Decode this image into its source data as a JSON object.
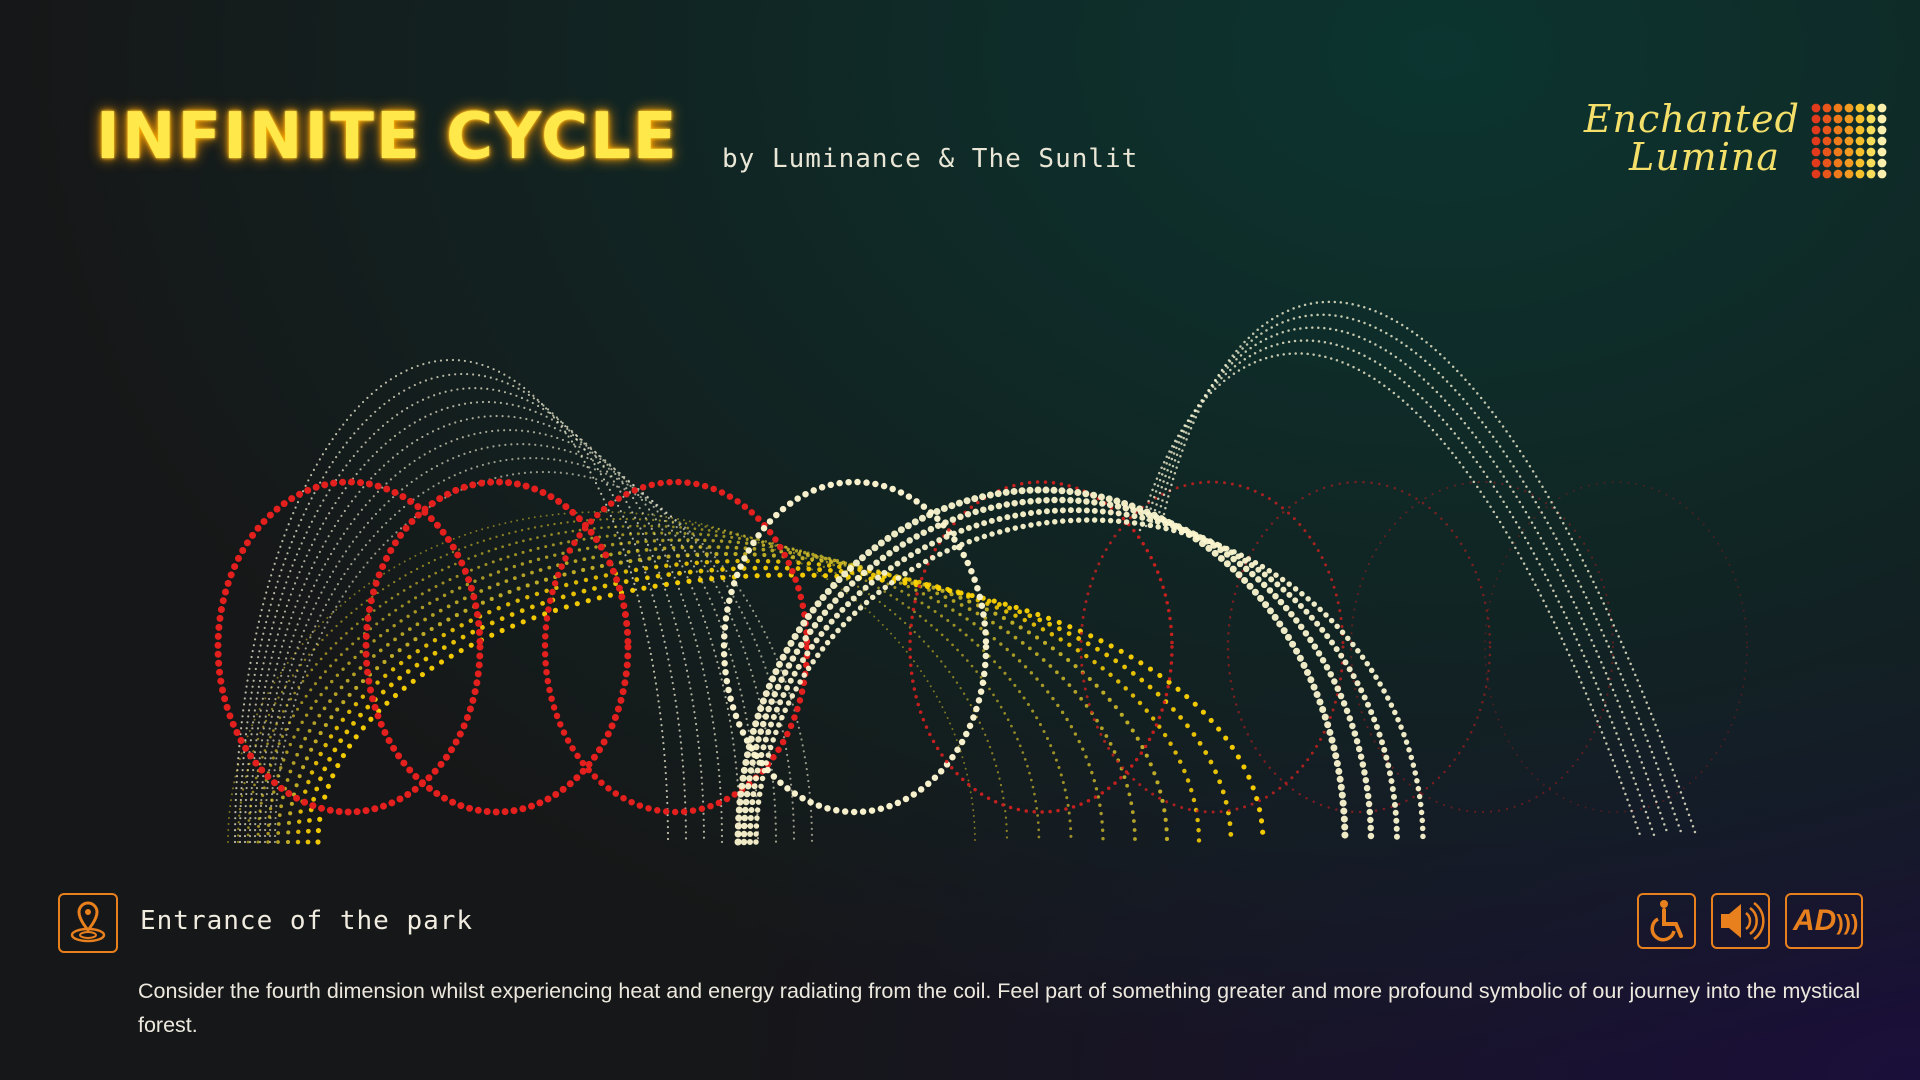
{
  "header": {
    "title": "INFINITE CYCLE",
    "subtitle": "by Luminance & The Sunlit"
  },
  "logo": {
    "line1": "Enchanted",
    "line2": "Lumina"
  },
  "footer": {
    "location": "Entrance of the park",
    "description": "Consider the fourth dimension whilst experiencing heat and energy radiating from the coil. Feel part of something greater and more profound symbolic of our journey into the mystical forest.",
    "audio_description_icon": "AD"
  }
}
